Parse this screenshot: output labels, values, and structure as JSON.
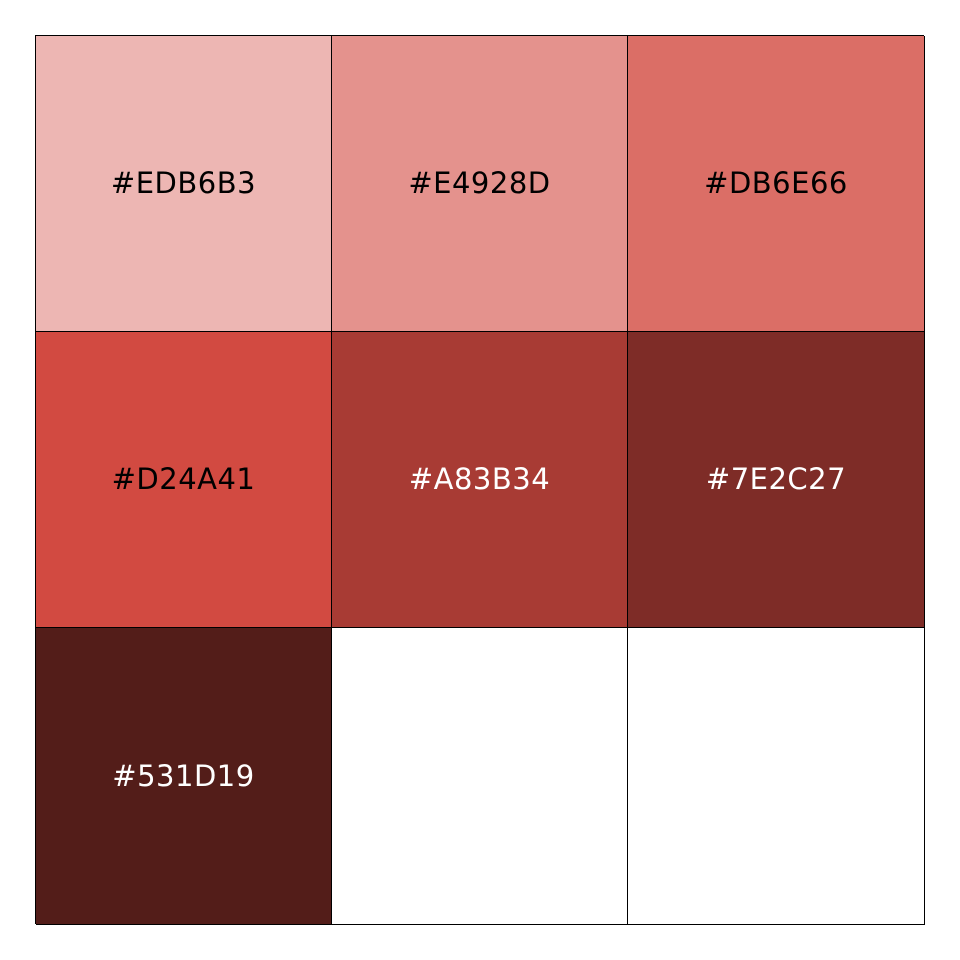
{
  "palette": {
    "swatches": [
      {
        "label": "#EDB6B3",
        "color": "#EDB6B3",
        "text_color": "#000000"
      },
      {
        "label": "#E4928D",
        "color": "#E4928D",
        "text_color": "#000000"
      },
      {
        "label": "#DB6E66",
        "color": "#DB6E66",
        "text_color": "#000000"
      },
      {
        "label": "#D24A41",
        "color": "#D24A41",
        "text_color": "#000000"
      },
      {
        "label": "#A83B34",
        "color": "#A83B34",
        "text_color": "#FFFFFF"
      },
      {
        "label": "#7E2C27",
        "color": "#7E2C27",
        "text_color": "#FFFFFF"
      },
      {
        "label": "#531D19",
        "color": "#531D19",
        "text_color": "#FFFFFF"
      },
      {
        "label": "",
        "color": "#FFFFFF",
        "text_color": "#000000"
      },
      {
        "label": "",
        "color": "#FFFFFF",
        "text_color": "#000000"
      }
    ]
  }
}
